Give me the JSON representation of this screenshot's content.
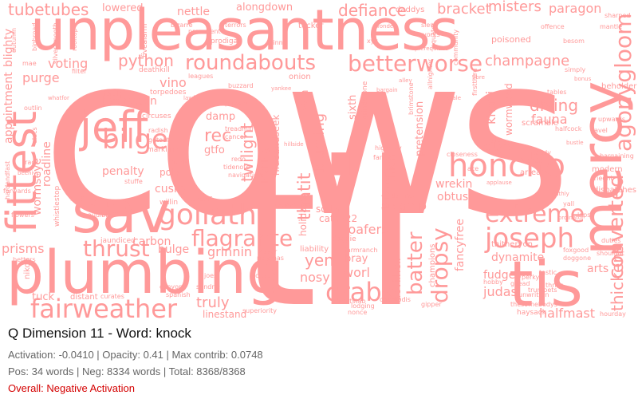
{
  "title": "Q Dimension 11 - Word: knock",
  "stats_line1": "Activation: -0.0410 | Opacity: 0.41 | Max contrib: 0.0748",
  "stats_line2": "Pos: 34 words | Neg: 8334 words | Total: 8368/8368",
  "overall": "Overall: Negative Activation",
  "colors": {
    "word": "#ff9999",
    "overall": "#d40000",
    "text": "#111111",
    "muted": "#666666"
  },
  "words": {
    "cows": "cows",
    "til": "til",
    "unpleasantness": "unpleasantness",
    "plumbing": "plumbing",
    "sav": "sav",
    "mercy": "mercy",
    "fittest": "fittest",
    "jeff": "jeff",
    "tis": "tis",
    "fairweather": "fairweather",
    "goliath": "goliath",
    "honcho": "honcho",
    "joseph": "joseph",
    "betterworse": "betterworse",
    "roundabouts": "roundabouts",
    "crabs": "crabs",
    "bilge": "bilge",
    "extreme": "extreme",
    "thrust": "thrust",
    "flagrante": "flagrante",
    "dropsy": "dropsy",
    "batter": "batter",
    "converted": "converted",
    "thickens": "thickens",
    "agonygloom": "agonygloom",
    "champagne": "champagne",
    "defiance": "defiance",
    "bracket": "bracket",
    "misters": "misters",
    "paragon": "paragon",
    "tubetubes": "tubetubes",
    "python": "python",
    "voting": "voting",
    "purge": "purge",
    "vino": "vino",
    "badrotten": "badrotten",
    "rec": "rec",
    "gtfo": "gtfo",
    "twilight": "twilight",
    "thatit": "thatit",
    "doubting": "doubting",
    "diving": "diving",
    "fauna": "fauna",
    "citys": "citys",
    "khazi": "khazi",
    "yen": "yen",
    "loafers": "loafers",
    "swamp": "swamp",
    "nosy": "nosy",
    "worl": "worl",
    "truly": "truly",
    "judas": "judas",
    "fudges": "fudges",
    "dynamite": "dynamite",
    "arts": "arts",
    "halfmast": "halfmast",
    "prisms": "prisms",
    "tuck": "tuck",
    "nettle": "nettle",
    "alongdown": "alongdown",
    "lowered": "lowered",
    "cushy": "cushy",
    "grinnin": "grinnin",
    "bulge": "bulge",
    "carbon": "carbon",
    "penalty": "penalty",
    "roadline": "roadline",
    "wormseye": "wormseye",
    "appointment": "appointment",
    "blighty": "blighty",
    "softan": "softan",
    "catch22": "catch22",
    "wrekin": "wrekin",
    "obtuse": "obtuse",
    "union": "union",
    "pretension": "pretension",
    "fancyfree": "fancyfree",
    "devilhell": "devilhell",
    "bray": "bray",
    "linestand": "linestand",
    "wormwood": "wormwood",
    "sixth": "sixth",
    "vain": "vain",
    "damp": "damp",
    "polls": "polls",
    "balances": "balances",
    "holidays": "holidays",
    "liability": "liability",
    "inviting": "inviting",
    "hideandseek": "hideandseek",
    "onion": "onion",
    "poisoned": "poisoned",
    "tucker": "tucker",
    "daddys": "daddys",
    "beholder": "beholder",
    "dispatches": "dispatches",
    "modern": "modern",
    "thitheryon": "thitheryon",
    "champions": "champions",
    "nikon": "nikon",
    "distant": "distant",
    "curates": "curates",
    "jaundiced": "jaundiced",
    "willin": "willin",
    "takeoff": "takeoff",
    "markline": "markline",
    "giddy": "giddy",
    "navigation": "navigation",
    "torpedoes": "torpedoes",
    "circuses": "circuses",
    "radish": "radish",
    "getout": "getout",
    "deathkill": "deathkill",
    "terrors": "terrors",
    "prodigal": "prodigal",
    "ruinns": "ruinns",
    "slew": "slew",
    "sharped": "sharped",
    "mantle": "mantle",
    "besom": "besom",
    "offence": "offence",
    "leagues": "leagues",
    "private": "private",
    "treadmill": "treadmill",
    "redo": "redo",
    "tidenote": "tidenote",
    "gilead": "gilead",
    "thrills": "thrills",
    "unwritten": "unwritten",
    "duties": "duties",
    "shouldnt": "shouldnt",
    "haysack": "haysack",
    "hourday": "hourday",
    "sundrie": "sundrie",
    "kisser": "kisser",
    "scissors": "scissors",
    "canyon": "canyon",
    "spanish": "spanish",
    "shotstab": "shotstab",
    "nonce": "nonce",
    "gipper": "gipper",
    "superiority": "superiority",
    "upwards": "upwards",
    "gavel": "gavel",
    "bargaining": "bargaining",
    "frieght": "frieght",
    "arrears": "arrears",
    "forwards": "forwards",
    "flowers": "flowers",
    "audible": "audible",
    "betters": "betters",
    "whistlestop": "whistlestop",
    "firstthird": "firstthird",
    "fivealarm": "fivealarm",
    "equator": "equator",
    "signed": "signed",
    "scramble": "scramble",
    "tinkle": "tinkle",
    "halfcock": "halfcock",
    "scale": "scale",
    "tables": "tables",
    "simply": "simply",
    "fibre": "fibre",
    "bargain": "bargain",
    "yorks": "yorks",
    "thesomebodys": "thesomebodys",
    "pajamas": "pajamas",
    "doggie": "doggie",
    "farmranch": "farmranch",
    "foxgood": "foxgood",
    "alley": "alley",
    "bonus": "bonus",
    "stuffe": "stuffe",
    "lodging": "lodging",
    "charybdis": "charybdis",
    "trumpets": "trumpets",
    "doggone": "doggone",
    "hobby": "hobby",
    "loathly": "loathly",
    "ordinator": "ordinator",
    "fertile": "fertile",
    "beehive": "beehive",
    "whatfor": "whatfor",
    "laps": "laps",
    "yall": "yall",
    "teddy": "teddy",
    "closeness": "closeness",
    "courses": "courses",
    "damned": "damned",
    "yore": "yore",
    "track": "track",
    "outlin": "outlin",
    "elecs": "elecs",
    "mae": "mae",
    "filter": "filter",
    "xyz": "xyz",
    "bigbroad": "bigbroad",
    "autumn": "autumn",
    "bizarre": "bizarre",
    "silversmooth": "silversmooth",
    "precedent": "precedent",
    "buzzard": "buzzard",
    "joes": "joes",
    "hardandfast": "hardandfast",
    "grindstone": "grindstone",
    "cancer": "cancer",
    "allnighter": "allnighter",
    "brimstone": "brimstone",
    "applause": "applause",
    "prerequisite": "prerequisite",
    "fancy": "fancy",
    "ace": "ace",
    "ale": "ale",
    "tastic": "tastic",
    "perky": "perky",
    "wonder": "wonder",
    "rooftop": "rooftop",
    "yankee": "yankee",
    "community": "community",
    "hillside": "hillside",
    "lawful": "lawful",
    "bustle": "bustle",
    "highway": "highway"
  }
}
